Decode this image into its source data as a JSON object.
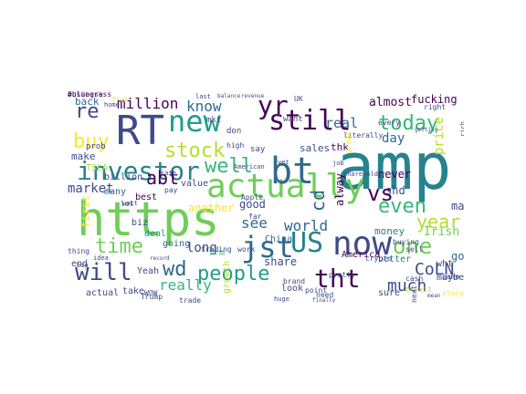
{
  "palette": {
    "dark_purple": "#440154",
    "indigo": "#3e4a89",
    "blue": "#31688e",
    "teal": "#26828e",
    "green_teal": "#1f9e89",
    "green": "#35b779",
    "lime": "#6ece58",
    "yellow_green": "#b5de2b",
    "yellow": "#fde725"
  },
  "words": [
    {
      "text": "amp",
      "color": "#26828e"
    },
    {
      "text": "https",
      "color": "#6ece58"
    },
    {
      "text": "RT",
      "color": "#3e4a89"
    },
    {
      "text": "actually",
      "color": "#6ece58"
    },
    {
      "text": "bt",
      "color": "#31688e"
    },
    {
      "text": "now",
      "color": "#3e4a89"
    },
    {
      "text": "tht",
      "color": "#440154"
    },
    {
      "text": "jst",
      "color": "#31688e"
    },
    {
      "text": "US",
      "color": "#26828e"
    },
    {
      "text": "investor",
      "color": "#26828e"
    },
    {
      "text": "new",
      "color": "#1f9e89"
    },
    {
      "text": "still",
      "color": "#440154"
    },
    {
      "text": "yr",
      "color": "#440154"
    },
    {
      "text": "time",
      "color": "#6ece58"
    },
    {
      "text": "one",
      "color": "#6ece58"
    },
    {
      "text": "people",
      "color": "#1f9e89"
    },
    {
      "text": "wd",
      "color": "#31688e"
    },
    {
      "text": "will",
      "color": "#3e4a89"
    },
    {
      "text": "even",
      "color": "#35b779"
    },
    {
      "text": "today",
      "color": "#35b779"
    },
    {
      "text": "stock",
      "color": "#b5de2b"
    },
    {
      "text": "well",
      "color": "#35b779"
    },
    {
      "text": "vs",
      "color": "#440154"
    },
    {
      "text": "CoLN",
      "color": "#3e4a89"
    },
    {
      "text": "year",
      "color": "#b5de2b"
    },
    {
      "text": "re",
      "color": "#3e4a89"
    },
    {
      "text": "abt",
      "color": "#440154"
    },
    {
      "text": "buy",
      "color": "#fde725"
    },
    {
      "text": "much",
      "color": "#3e4a89"
    },
    {
      "text": "see",
      "color": "#31688e"
    },
    {
      "text": "know",
      "color": "#31688e"
    },
    {
      "text": "world",
      "color": "#31688e"
    },
    {
      "text": "million",
      "color": "#440154"
    },
    {
      "text": "market",
      "color": "#3e4a89"
    },
    {
      "text": "really",
      "color": "#35b779"
    },
    {
      "text": "price",
      "color": "#b5de2b"
    },
    {
      "text": "day",
      "color": "#31688e"
    },
    {
      "text": "real",
      "color": "#31688e"
    },
    {
      "text": "almost",
      "color": "#440154"
    },
    {
      "text": "fucking",
      "color": "#440154"
    },
    {
      "text": "long",
      "color": "#3e4a89"
    },
    {
      "text": "cd",
      "color": "#31688e"
    },
    {
      "text": "good",
      "color": "#3e4a89"
    },
    {
      "text": "shd",
      "color": "#3e4a89"
    },
    {
      "text": "never",
      "color": "#440154"
    },
    {
      "text": "share",
      "color": "#3e4a89"
    },
    {
      "text": "another",
      "color": "#fde725"
    },
    {
      "text": "first",
      "color": "#fde725"
    },
    {
      "text": "Irish",
      "color": "#6ece58"
    },
    {
      "text": "go",
      "color": "#31688e"
    },
    {
      "text": "may",
      "color": "#3e4a89"
    },
    {
      "text": "alway",
      "color": "#440154"
    },
    {
      "text": "sales",
      "color": "#3e4a89"
    },
    {
      "text": "thk",
      "color": "#440154"
    },
    {
      "text": "money",
      "color": "#26828e"
    },
    {
      "text": "back",
      "color": "#31688e"
    },
    {
      "text": "make",
      "color": "#3e4a89"
    },
    {
      "text": "many",
      "color": "#31688e"
    },
    {
      "text": "value",
      "color": "#3e4a89"
    },
    {
      "text": "best",
      "color": "#440154"
    },
    {
      "text": "biz",
      "color": "#3e4a89"
    },
    {
      "text": "billion",
      "color": "#3e4a89"
    },
    {
      "text": "deal",
      "color": "#1f9e89"
    },
    {
      "text": "China",
      "color": "#31688e"
    },
    {
      "text": "America",
      "color": "#440154"
    },
    {
      "text": "Yeah",
      "color": "#3e4a89"
    },
    {
      "text": "going",
      "color": "#31688e"
    },
    {
      "text": "frm",
      "color": "#35b779"
    },
    {
      "text": "growth",
      "color": "#b5de2b"
    },
    {
      "text": "look",
      "color": "#3e4a89"
    },
    {
      "text": "better",
      "color": "#26828e"
    },
    {
      "text": "sure",
      "color": "#3e4a89"
    },
    {
      "text": "maybe",
      "color": "#3e4a89"
    },
    {
      "text": "wht",
      "color": "#3e4a89"
    },
    {
      "text": "actual",
      "color": "#3e4a89"
    },
    {
      "text": "take",
      "color": "#3e4a89"
    },
    {
      "text": "end",
      "color": "#3e4a89"
    },
    {
      "text": "thing",
      "color": "#3e4a89"
    },
    {
      "text": "mkt",
      "color": "#3e4a89"
    },
    {
      "text": "don",
      "color": "#3e4a89"
    },
    {
      "text": "want",
      "color": "#3e4a89"
    },
    {
      "text": "say",
      "color": "#3e4a89"
    },
    {
      "text": "prob",
      "color": "#3e4a89"
    },
    {
      "text": "TSLA",
      "color": "#b5de2b"
    },
    {
      "text": "UK",
      "color": "#3e4a89"
    },
    {
      "text": "brand",
      "color": "#3e4a89"
    },
    {
      "text": "pretty",
      "color": "#3e4a89"
    },
    {
      "text": "far",
      "color": "#3e4a89"
    },
    {
      "text": "crypto",
      "color": "#3e4a89"
    },
    {
      "text": "buying",
      "color": "#3e4a89"
    },
    {
      "text": "cash",
      "color": "#3e4a89"
    },
    {
      "text": "come",
      "color": "#3e4a89"
    },
    {
      "text": "story",
      "color": "#fde725"
    },
    {
      "text": "need",
      "color": "#3e4a89"
    },
    {
      "text": "work",
      "color": "#3e4a89"
    },
    {
      "text": "high",
      "color": "#3e4a89"
    },
    {
      "text": "literally",
      "color": "#3e4a89"
    },
    {
      "text": "great",
      "color": "#fde725"
    },
    {
      "text": "every",
      "color": "#3e4a89"
    },
    {
      "text": "sell",
      "color": "#3e4a89"
    },
    {
      "text": "next",
      "color": "#3e4a89"
    },
    {
      "text": "brexit",
      "color": "#b5de2b"
    },
    {
      "text": "point",
      "color": "#3e4a89"
    },
    {
      "text": "trade",
      "color": "#3e4a89"
    },
    {
      "text": "trading",
      "color": "#3e4a89"
    },
    {
      "text": "Trump",
      "color": "#3e4a89"
    },
    {
      "text": "WOW",
      "color": "#3e4a89"
    },
    {
      "text": "lot",
      "color": "#3e4a89"
    },
    {
      "text": "job",
      "color": "#3e4a89"
    },
    {
      "text": "right",
      "color": "#3e4a89"
    },
    {
      "text": "pay",
      "color": "#3e4a89"
    },
    {
      "text": "last",
      "color": "#3e4a89"
    },
    {
      "text": "free",
      "color": "#fde725"
    },
    {
      "text": "home",
      "color": "#3e4a89"
    },
    {
      "text": "Apple",
      "color": "#3e4a89"
    },
    {
      "text": "yet",
      "color": "#3e4a89"
    },
    {
      "text": "big",
      "color": "#3e4a89"
    },
    {
      "text": "wait",
      "color": "#3e4a89"
    },
    {
      "text": "idea",
      "color": "#3e4a89"
    },
    {
      "text": "huge",
      "color": "#3e4a89"
    },
    {
      "text": "rate",
      "color": "#3e4a89"
    },
    {
      "text": "American",
      "color": "#3e4a89"
    },
    {
      "text": "shareholder",
      "color": "#3e4a89"
    },
    {
      "text": "getting",
      "color": "#3e4a89"
    },
    {
      "text": "mean",
      "color": "#3e4a89"
    },
    {
      "text": "finally",
      "color": "#3e4a89"
    },
    {
      "text": "balance",
      "color": "#3e4a89"
    },
    {
      "text": "revenue",
      "color": "#3e4a89"
    },
    {
      "text": "record",
      "color": "#3e4a89"
    },
    {
      "text": "rich",
      "color": "#3e4a89"
    },
    {
      "text": "business",
      "color": "#3e4a89"
    },
    {
      "text": "#bluegrass",
      "color": "#440154"
    }
  ]
}
